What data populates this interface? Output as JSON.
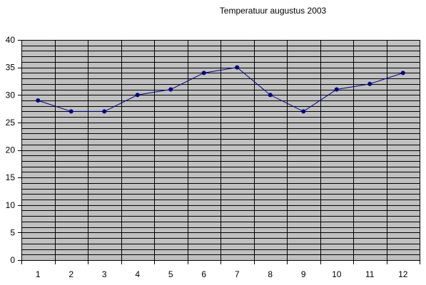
{
  "chart_data": {
    "type": "line",
    "title": "Temperatuur augustus 2003",
    "xlabel": "",
    "ylabel": "",
    "categories": [
      "1",
      "2",
      "3",
      "4",
      "5",
      "6",
      "7",
      "8",
      "9",
      "10",
      "11",
      "12"
    ],
    "series": [
      {
        "values": [
          29,
          27,
          27,
          30,
          31,
          34,
          35,
          30,
          27,
          31,
          32,
          34
        ]
      }
    ],
    "ylim": [
      0,
      40
    ],
    "y_ticks": [
      "0",
      "5",
      "10",
      "15",
      "20",
      "25",
      "30",
      "35",
      "40"
    ],
    "grid": true,
    "legend": "none",
    "colors": {
      "plot_background": "#c0c0c0",
      "gridline": "#000000",
      "line": "#000080",
      "marker": "#000080"
    }
  }
}
